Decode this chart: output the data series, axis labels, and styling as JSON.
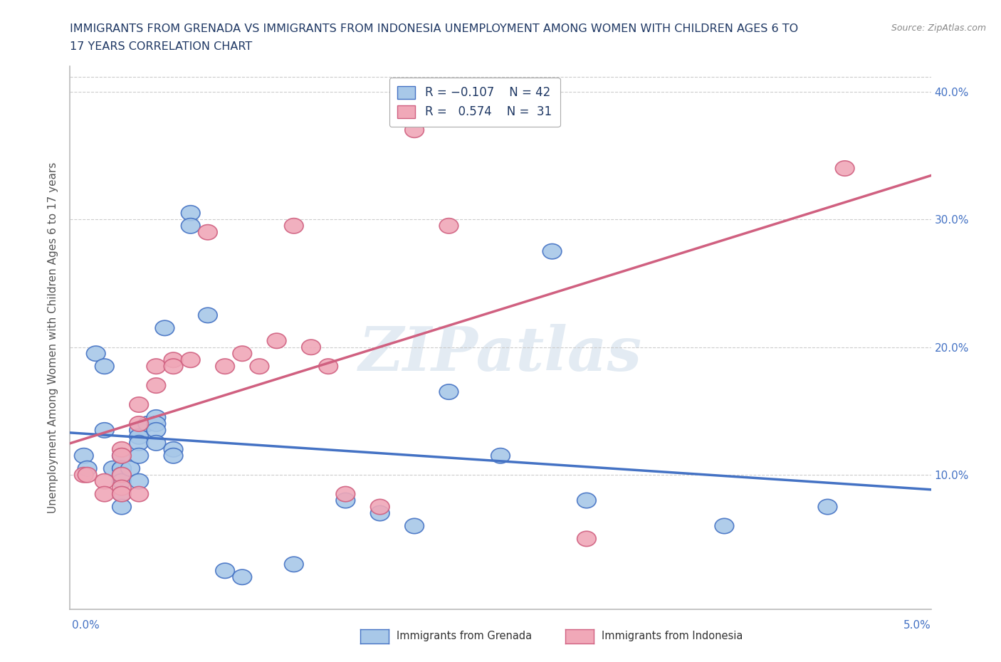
{
  "title_line1": "IMMIGRANTS FROM GRENADA VS IMMIGRANTS FROM INDONESIA UNEMPLOYMENT AMONG WOMEN WITH CHILDREN AGES 6 TO",
  "title_line2": "17 YEARS CORRELATION CHART",
  "source": "Source: ZipAtlas.com",
  "ylabel": "Unemployment Among Women with Children Ages 6 to 17 years",
  "xmin": 0.0,
  "xmax": 0.05,
  "ymin": -0.005,
  "ymax": 0.42,
  "yticks": [
    0.0,
    0.1,
    0.2,
    0.3,
    0.4
  ],
  "ytick_labels": [
    "",
    "10.0%",
    "20.0%",
    "30.0%",
    "40.0%"
  ],
  "color_grenada": "#a8c8e8",
  "color_indonesia": "#f0a8b8",
  "color_grenada_line": "#4472c4",
  "color_indonesia_line": "#d06080",
  "title_color": "#1f3864",
  "axis_color": "#bbbbbb",
  "grid_color": "#cccccc",
  "watermark_color": "#c8d8e8",
  "grenada_x": [
    0.0008,
    0.001,
    0.0015,
    0.002,
    0.002,
    0.0025,
    0.003,
    0.003,
    0.003,
    0.003,
    0.003,
    0.003,
    0.003,
    0.0035,
    0.004,
    0.004,
    0.004,
    0.004,
    0.004,
    0.0045,
    0.005,
    0.005,
    0.005,
    0.005,
    0.0055,
    0.006,
    0.006,
    0.007,
    0.007,
    0.008,
    0.009,
    0.01,
    0.013,
    0.016,
    0.018,
    0.02,
    0.022,
    0.025,
    0.028,
    0.03,
    0.038,
    0.044
  ],
  "grenada_y": [
    0.115,
    0.105,
    0.195,
    0.185,
    0.135,
    0.105,
    0.115,
    0.105,
    0.105,
    0.1,
    0.095,
    0.085,
    0.075,
    0.105,
    0.135,
    0.13,
    0.125,
    0.115,
    0.095,
    0.14,
    0.145,
    0.14,
    0.135,
    0.125,
    0.215,
    0.12,
    0.115,
    0.305,
    0.295,
    0.225,
    0.025,
    0.02,
    0.03,
    0.08,
    0.07,
    0.06,
    0.165,
    0.115,
    0.275,
    0.08,
    0.06,
    0.075
  ],
  "indonesia_x": [
    0.0008,
    0.001,
    0.002,
    0.002,
    0.003,
    0.003,
    0.003,
    0.003,
    0.003,
    0.004,
    0.004,
    0.004,
    0.005,
    0.005,
    0.006,
    0.006,
    0.007,
    0.008,
    0.009,
    0.01,
    0.011,
    0.012,
    0.013,
    0.014,
    0.015,
    0.016,
    0.018,
    0.02,
    0.022,
    0.03,
    0.045
  ],
  "indonesia_y": [
    0.1,
    0.1,
    0.095,
    0.085,
    0.12,
    0.115,
    0.1,
    0.09,
    0.085,
    0.155,
    0.14,
    0.085,
    0.185,
    0.17,
    0.19,
    0.185,
    0.19,
    0.29,
    0.185,
    0.195,
    0.185,
    0.205,
    0.295,
    0.2,
    0.185,
    0.085,
    0.075,
    0.37,
    0.295,
    0.05,
    0.34
  ]
}
